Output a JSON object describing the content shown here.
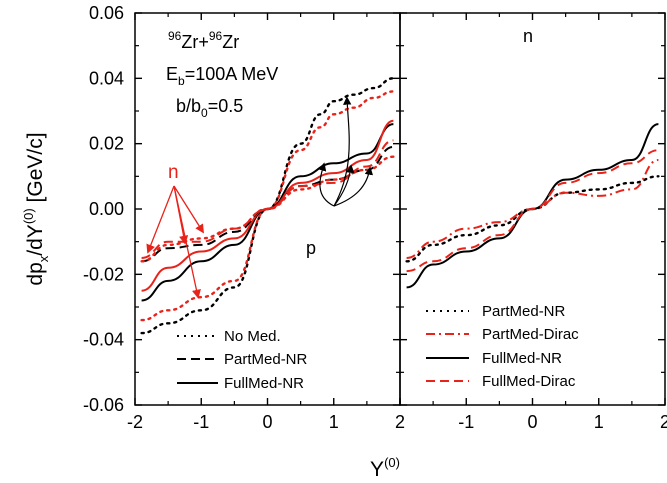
{
  "chart_data": [
    {
      "type": "line",
      "panel": "left",
      "x_range": [
        -2,
        2
      ],
      "ylim": [
        -0.06,
        0.06
      ],
      "xlabel": "Y(0)",
      "ylabel": "dpx/dY(0) [GeV/c]",
      "x_ticks": [
        "-2",
        "-1",
        "0",
        "1",
        "2"
      ],
      "y_ticks": [
        "0.06",
        "0.04",
        "0.02",
        "0.00",
        "-0.02",
        "-0.04",
        "-0.06"
      ],
      "annotations": {
        "reaction": {
          "a": "96",
          "b": "Zr+",
          "c": "96",
          "d": "Zr"
        },
        "energy": {
          "a": "E",
          "b": "b",
          "c": "=100A MeV"
        },
        "impact": {
          "a": "b/b",
          "b": "0",
          "c": "=0.5"
        },
        "n_label": "n",
        "p_label": "p"
      },
      "legend": [
        {
          "label": "No Med.",
          "style": "dotted",
          "color": "#000000"
        },
        {
          "label": "PartMed-NR",
          "style": "dashed",
          "color": "#000000"
        },
        {
          "label": "FullMed-NR",
          "style": "solid",
          "color": "#000000"
        }
      ],
      "series": [
        {
          "particle": "p",
          "style": "dotted",
          "color": "#000000",
          "x": [
            -1.9,
            -1.5,
            -1.0,
            -0.5,
            0.0,
            0.5,
            0.8,
            1.0,
            1.3,
            1.6,
            1.9
          ],
          "y": [
            -0.038,
            -0.035,
            -0.031,
            -0.024,
            0.0,
            0.02,
            0.029,
            0.033,
            0.035,
            0.037,
            0.04
          ]
        },
        {
          "particle": "p",
          "style": "dotted",
          "color": "#e8231a",
          "x": [
            -1.9,
            -1.5,
            -1.0,
            -0.5,
            0.0,
            0.5,
            0.8,
            1.0,
            1.3,
            1.6,
            1.9
          ],
          "y": [
            -0.034,
            -0.031,
            -0.027,
            -0.022,
            0.0,
            0.018,
            0.025,
            0.029,
            0.031,
            0.034,
            0.036
          ]
        },
        {
          "particle": "n",
          "style": "solid",
          "color": "#000000",
          "x": [
            -1.9,
            -1.5,
            -1.0,
            -0.5,
            0.0,
            0.5,
            1.0,
            1.5,
            1.9
          ],
          "y": [
            -0.028,
            -0.022,
            -0.016,
            -0.011,
            0.0,
            0.01,
            0.014,
            0.017,
            0.026
          ]
        },
        {
          "particle": "n",
          "style": "solid",
          "color": "#e8231a",
          "x": [
            -1.9,
            -1.5,
            -1.0,
            -0.5,
            0.0,
            0.5,
            1.0,
            1.5,
            1.9
          ],
          "y": [
            -0.025,
            -0.018,
            -0.013,
            -0.009,
            0.0,
            0.008,
            0.011,
            0.015,
            0.027
          ]
        },
        {
          "particle": "n",
          "style": "dashed",
          "color": "#000000",
          "x": [
            -1.9,
            -1.5,
            -1.0,
            -0.5,
            0.0,
            0.5,
            1.0,
            1.5,
            1.9
          ],
          "y": [
            -0.016,
            -0.012,
            -0.011,
            -0.007,
            0.0,
            0.007,
            0.009,
            0.012,
            0.019
          ]
        },
        {
          "particle": "n",
          "style": "dashed",
          "color": "#e8231a",
          "x": [
            -1.9,
            -1.5,
            -1.0,
            -0.5,
            0.0,
            0.5,
            1.0,
            1.5,
            1.9
          ],
          "y": [
            -0.015,
            -0.01,
            -0.01,
            -0.006,
            0.0,
            0.007,
            0.008,
            0.013,
            0.021
          ]
        },
        {
          "particle": "n",
          "style": "dotted",
          "color": "#e8231a",
          "x": [
            -1.9,
            -1.5,
            -1.0,
            -0.5,
            0.0,
            0.5,
            1.0,
            1.5,
            1.9
          ],
          "y": [
            -0.016,
            -0.011,
            -0.009,
            -0.006,
            0.0,
            0.006,
            0.009,
            0.012,
            0.016
          ]
        }
      ]
    },
    {
      "type": "line",
      "panel": "right",
      "x_range": [
        -2,
        2
      ],
      "ylim": [
        -0.06,
        0.06
      ],
      "x_ticks": [
        "-1",
        "0",
        "1",
        "2"
      ],
      "annotations": {
        "n_label": "n"
      },
      "legend": [
        {
          "label": "PartMed-NR",
          "style": "dotted",
          "color": "#000000"
        },
        {
          "label": "PartMed-Dirac",
          "style": "dashdot",
          "color": "#e8231a"
        },
        {
          "label": "FullMed-NR",
          "style": "solid",
          "color": "#000000"
        },
        {
          "label": "FullMed-Dirac",
          "style": "dashed",
          "color": "#e8231a"
        }
      ],
      "series": [
        {
          "name": "PartMed-NR",
          "style": "dotted",
          "color": "#000000",
          "x": [
            -1.9,
            -1.5,
            -1.0,
            -0.5,
            0.0,
            0.5,
            1.0,
            1.5,
            1.9
          ],
          "y": [
            -0.016,
            -0.011,
            -0.008,
            -0.005,
            0.0,
            0.005,
            0.006,
            0.008,
            0.01
          ]
        },
        {
          "name": "PartMed-Dirac",
          "style": "dashdot",
          "color": "#e8231a",
          "x": [
            -1.9,
            -1.5,
            -1.0,
            -0.5,
            0.0,
            0.5,
            1.0,
            1.5,
            1.9
          ],
          "y": [
            -0.015,
            -0.01,
            -0.006,
            -0.004,
            0.0,
            0.005,
            0.004,
            0.006,
            0.015
          ]
        },
        {
          "name": "FullMed-NR",
          "style": "solid",
          "color": "#000000",
          "x": [
            -1.9,
            -1.5,
            -1.0,
            -0.5,
            0.0,
            0.5,
            1.0,
            1.5,
            1.9
          ],
          "y": [
            -0.024,
            -0.017,
            -0.013,
            -0.009,
            0.0,
            0.009,
            0.012,
            0.015,
            0.026
          ]
        },
        {
          "name": "FullMed-Dirac",
          "style": "dashed",
          "color": "#e8231a",
          "x": [
            -1.9,
            -1.5,
            -1.0,
            -0.5,
            0.0,
            0.5,
            1.0,
            1.5,
            1.9
          ],
          "y": [
            -0.019,
            -0.016,
            -0.012,
            -0.008,
            0.0,
            0.008,
            0.011,
            0.014,
            0.018
          ]
        }
      ]
    }
  ]
}
